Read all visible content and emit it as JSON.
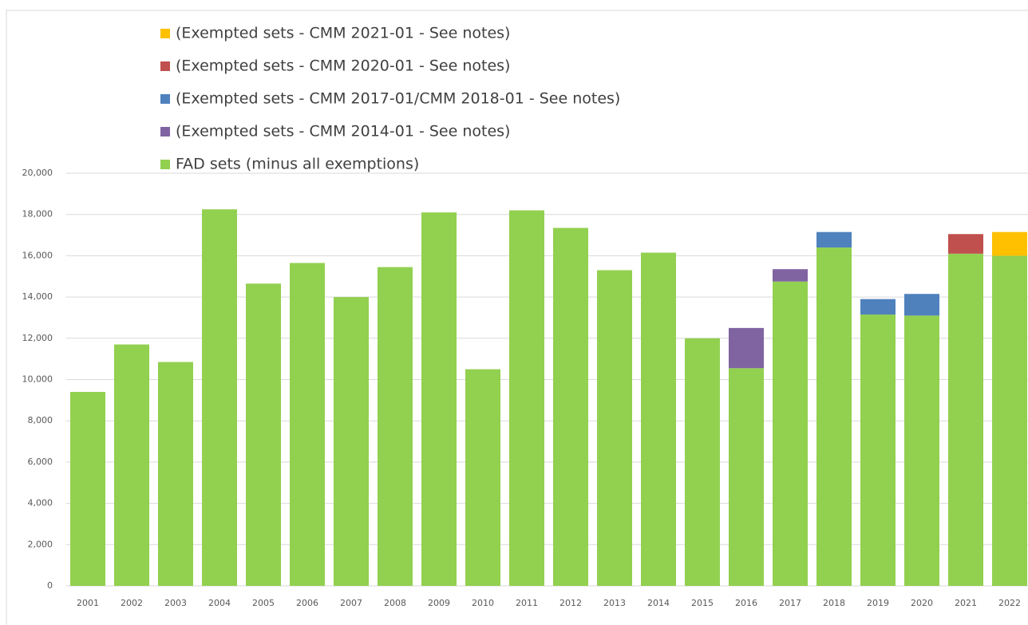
{
  "chart_data": {
    "type": "stacked-bar",
    "categories": [
      "2001",
      "2002",
      "2003",
      "2004",
      "2005",
      "2006",
      "2007",
      "2008",
      "2009",
      "2010",
      "2011",
      "2012",
      "2013",
      "2014",
      "2015",
      "2016",
      "2017",
      "2018",
      "2019",
      "2020",
      "2021",
      "2022"
    ],
    "series": [
      {
        "name": "FAD sets (minus all exemptions)",
        "color": "#92d050",
        "values": [
          9400,
          11700,
          10850,
          18250,
          14650,
          15650,
          14000,
          15450,
          18100,
          10500,
          18200,
          17350,
          15300,
          16150,
          12000,
          10550,
          14750,
          16400,
          13150,
          13100,
          16100,
          16000
        ]
      },
      {
        "name": "(Exempted sets - CMM 2014-01 - See notes)",
        "color": "#8064a2",
        "values": [
          null,
          null,
          null,
          null,
          null,
          null,
          null,
          null,
          null,
          null,
          null,
          null,
          null,
          null,
          null,
          1950,
          600,
          null,
          null,
          null,
          null,
          null
        ]
      },
      {
        "name": "(Exempted sets - CMM 2017-01/CMM 2018-01 - See notes)",
        "color": "#4f81bd",
        "values": [
          null,
          null,
          null,
          null,
          null,
          null,
          null,
          null,
          null,
          null,
          null,
          null,
          null,
          null,
          null,
          null,
          null,
          750,
          750,
          1050,
          null,
          null
        ]
      },
      {
        "name": "(Exempted sets - CMM 2020-01 - See notes)",
        "color": "#c0504d",
        "values": [
          null,
          null,
          null,
          null,
          null,
          null,
          null,
          null,
          null,
          null,
          null,
          null,
          null,
          null,
          null,
          null,
          null,
          null,
          null,
          null,
          950,
          null
        ]
      },
      {
        "name": "(Exempted sets - CMM 2021-01 - See notes)",
        "color": "#ffc000",
        "values": [
          null,
          null,
          null,
          null,
          null,
          null,
          null,
          null,
          null,
          null,
          null,
          null,
          null,
          null,
          null,
          null,
          null,
          null,
          null,
          null,
          null,
          1150
        ]
      }
    ],
    "ylim": [
      0,
      20000
    ],
    "yticks": [
      0,
      {
        "value": 2000,
        "label": "2,000"
      },
      {
        "value": 4000,
        "label": "4,000"
      },
      {
        "value": 6000,
        "label": "6,000"
      },
      {
        "value": 8000,
        "label": "8,000"
      },
      {
        "value": 10000,
        "label": "10,000"
      },
      {
        "value": 12000,
        "label": "12,000"
      },
      {
        "value": 14000,
        "label": "14,000"
      },
      {
        "value": 16000,
        "label": "16,000"
      },
      {
        "value": 18000,
        "label": "18,000"
      },
      {
        "value": 20000,
        "label": "20,000"
      }
    ],
    "grid": true
  }
}
